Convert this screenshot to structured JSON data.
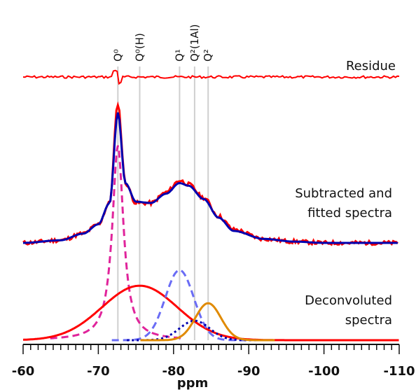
{
  "chart_data": {
    "type": "line",
    "title": "",
    "xlabel": "ppm",
    "ylabel": "",
    "xlim": [
      -60,
      -110
    ],
    "x_reversed": true,
    "x_ticks": [
      -60,
      -70,
      -80,
      -90,
      -100,
      -110
    ],
    "x_tick_labels": [
      "-60",
      "-70",
      "-80",
      "-90",
      "-100",
      "-110"
    ],
    "grid": false,
    "reference_lines": [
      {
        "label": "Q⁰",
        "x": -72.6
      },
      {
        "label": "Q⁰(H)",
        "x": -75.5
      },
      {
        "label": "Q¹",
        "x": -80.8
      },
      {
        "label": "Q²(1Al)",
        "x": -82.8
      },
      {
        "label": "Q²",
        "x": -84.6
      }
    ],
    "annotations": [
      {
        "text": "Residue",
        "near": "top-right"
      },
      {
        "text": "Subtracted and",
        "near": "middle-right"
      },
      {
        "text": "fitted spectra",
        "near": "middle-right"
      },
      {
        "text": "Deconvoluted",
        "near": "bottom-right"
      },
      {
        "text": "spectra",
        "near": "bottom-right"
      }
    ],
    "panels": [
      {
        "name": "residue",
        "series": [
          {
            "color": "#ff0000",
            "style": "solid",
            "shape": "noise",
            "baseline": 0,
            "dip_at": -72.6
          }
        ]
      },
      {
        "name": "subtracted and fitted",
        "series": [
          {
            "color": "#ff0000",
            "style": "solid",
            "role": "experimental",
            "x": [
              -60,
              -65,
              -68,
              -70,
              -71.5,
              -72.6,
              -73.6,
              -75,
              -77,
              -79,
              -80.8,
              -82,
              -84,
              -86,
              -88,
              -92,
              -96,
              -100,
              -110
            ],
            "y": [
              0.0,
              0.02,
              0.07,
              0.14,
              0.3,
              1.05,
              0.45,
              0.3,
              0.3,
              0.38,
              0.47,
              0.44,
              0.34,
              0.2,
              0.1,
              0.03,
              0.01,
              0.0,
              0.0
            ]
          },
          {
            "color": "#0000b0",
            "style": "solid",
            "role": "fit",
            "x": [
              -60,
              -65,
              -68,
              -70,
              -71.5,
              -72.6,
              -73.6,
              -75,
              -77,
              -79,
              -80.8,
              -82,
              -84,
              -86,
              -88,
              -92,
              -96,
              -100,
              -110
            ],
            "y": [
              0.0,
              0.02,
              0.07,
              0.14,
              0.3,
              0.98,
              0.45,
              0.31,
              0.3,
              0.37,
              0.45,
              0.43,
              0.33,
              0.19,
              0.09,
              0.03,
              0.01,
              0.0,
              0.0
            ]
          }
        ]
      },
      {
        "name": "deconvoluted",
        "series": [
          {
            "color": "#e0249b",
            "style": "dashed",
            "center": -72.6,
            "height": 1.0,
            "width": 0.9,
            "shape": "lorentzian"
          },
          {
            "color": "#ff0000",
            "style": "solid",
            "center": -75.5,
            "height": 0.28,
            "width": 5.0,
            "shape": "gaussian"
          },
          {
            "color": "#6a6cf5",
            "style": "dashed",
            "center": -80.8,
            "height": 0.36,
            "width": 1.9,
            "shape": "gaussian"
          },
          {
            "color": "#0000b0",
            "style": "dotted",
            "center": -82.8,
            "height": 0.1,
            "width": 2.0,
            "shape": "gaussian"
          },
          {
            "color": "#e08a00",
            "style": "solid",
            "center": -84.6,
            "height": 0.19,
            "width": 1.7,
            "shape": "gaussian"
          }
        ]
      }
    ]
  }
}
